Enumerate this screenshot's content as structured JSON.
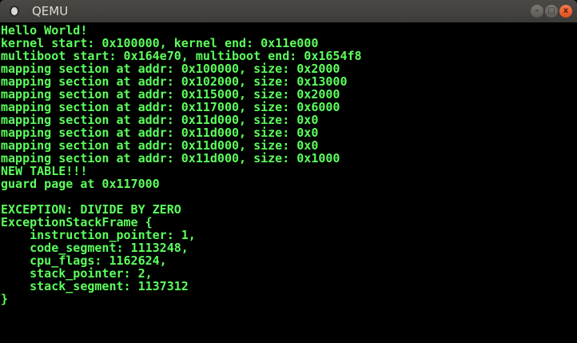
{
  "window": {
    "title": "QEMU",
    "buttons": {
      "minimize": "–",
      "maximize": "□",
      "close": "x"
    }
  },
  "console": {
    "color": "#5cff5c",
    "lines": [
      "Hello World!",
      "kernel start: 0x100000, kernel end: 0x11e000",
      "multiboot start: 0x164e70, multiboot end: 0x1654f8",
      "mapping section at addr: 0x100000, size: 0x2000",
      "mapping section at addr: 0x102000, size: 0x13000",
      "mapping section at addr: 0x115000, size: 0x2000",
      "mapping section at addr: 0x117000, size: 0x6000",
      "mapping section at addr: 0x11d000, size: 0x0",
      "mapping section at addr: 0x11d000, size: 0x0",
      "mapping section at addr: 0x11d000, size: 0x0",
      "mapping section at addr: 0x11d000, size: 0x1000",
      "NEW TABLE!!!",
      "guard page at 0x117000",
      "",
      "EXCEPTION: DIVIDE BY ZERO",
      "ExceptionStackFrame {",
      "    instruction_pointer: 1,",
      "    code_segment: 1113248,",
      "    cpu_flags: 1162624,",
      "    stack_pointer: 2,",
      "    stack_segment: 1137312",
      "}"
    ]
  }
}
